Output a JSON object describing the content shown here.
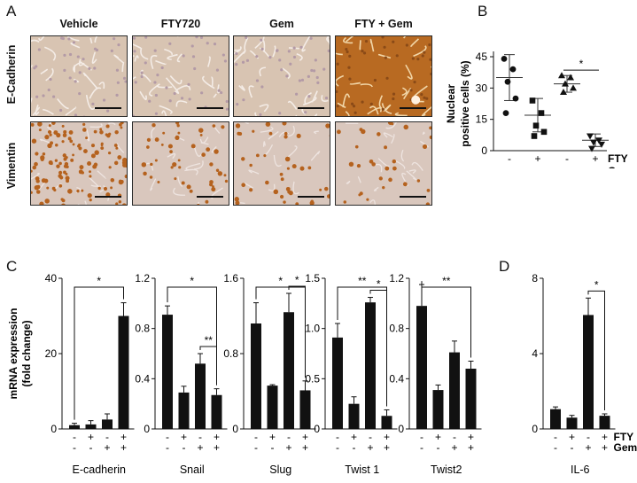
{
  "panel_labels": {
    "a": "A",
    "b": "B",
    "c": "C",
    "d": "D"
  },
  "panel_a": {
    "columns": [
      "Vehicle",
      "FTY720",
      "Gem",
      "FTY + Gem"
    ],
    "rows": [
      "E-Cadherin",
      "Vimentin"
    ],
    "colors": {
      "ecad_light": "#d8c4b2",
      "ecad_strong": "#b86a22",
      "vim_bg": "#d9c7bd",
      "vim_nuclei": "#b5621e"
    }
  },
  "chart_data": [
    {
      "id": "B",
      "type": "scatter",
      "ylabel": "Nuclear\npositive cells (%)",
      "ylim": [
        0,
        45
      ],
      "yticks": [
        "0",
        "15",
        "30",
        "45"
      ],
      "treatment_rows": [
        {
          "name": "FTY",
          "signs": [
            "-",
            "+",
            "-",
            "+"
          ]
        },
        {
          "name": "Gem",
          "signs": [
            "-",
            "-",
            "+",
            "+"
          ]
        }
      ],
      "groups": [
        {
          "marker": "circle",
          "points": [
            44,
            39,
            33,
            25,
            18
          ],
          "mean": 35,
          "sd": 11
        },
        {
          "marker": "square",
          "points": [
            24,
            18,
            12,
            9,
            7
          ],
          "mean": 17,
          "sd": 8
        },
        {
          "marker": "triangle",
          "points": [
            36,
            35,
            32,
            30,
            28
          ],
          "mean": 32,
          "sd": 4
        },
        {
          "marker": "triangle-down",
          "points": [
            7,
            5,
            4,
            3,
            1
          ],
          "mean": 5,
          "sd": 3
        }
      ],
      "significance": [
        {
          "from": 3,
          "to": 4,
          "label": "*"
        }
      ]
    },
    {
      "id": "C",
      "type": "bar",
      "ylabel": "mRNA expression\n(fold change)",
      "treatment_rows": [
        {
          "name": "FTY",
          "signs": [
            "-",
            "+",
            "-",
            "+"
          ]
        },
        {
          "name": "Gem",
          "signs": [
            "-",
            "-",
            "+",
            "+"
          ]
        }
      ],
      "subplots": [
        {
          "xlabel": "E-cadherin",
          "ylim": [
            0,
            40
          ],
          "yticks": [
            "0",
            "20",
            "40"
          ],
          "values": [
            1,
            1.2,
            2.5,
            30
          ],
          "errors": [
            0.5,
            1,
            1.5,
            3.5
          ],
          "significance": [
            {
              "from": 1,
              "to": 4,
              "label": "*"
            }
          ]
        },
        {
          "xlabel": "Snail",
          "ylim": [
            0,
            1.2
          ],
          "yticks": [
            "0",
            "0.4",
            "0.8",
            "1.2"
          ],
          "values": [
            0.91,
            0.29,
            0.52,
            0.27
          ],
          "errors": [
            0.07,
            0.05,
            0.08,
            0.05
          ],
          "significance": [
            {
              "from": 1,
              "to": 4,
              "label": "*"
            },
            {
              "from": 3,
              "to": 4,
              "label": "**"
            }
          ]
        },
        {
          "xlabel": "Slug",
          "ylim": [
            0,
            1.6
          ],
          "yticks": [
            "0",
            "0.8",
            "1.6"
          ],
          "values": [
            1.12,
            0.46,
            1.24,
            0.41
          ],
          "errors": [
            0.22,
            0.01,
            0.2,
            0.1
          ],
          "significance": [
            {
              "from": 1,
              "to": 4,
              "label": "*"
            },
            {
              "from": 3,
              "to": 4,
              "label": "*"
            }
          ]
        },
        {
          "xlabel": "Twist 1",
          "ylim": [
            0,
            1.5
          ],
          "yticks": [
            "0",
            "0.5",
            "1.0",
            "1.5"
          ],
          "values": [
            0.91,
            0.25,
            1.26,
            0.13
          ],
          "errors": [
            0.14,
            0.07,
            0.05,
            0.06
          ],
          "significance": [
            {
              "from": 1,
              "to": 4,
              "label": "**"
            },
            {
              "from": 3,
              "to": 4,
              "label": "*"
            }
          ]
        },
        {
          "xlabel": "Twist2",
          "ylim": [
            0,
            1.2
          ],
          "yticks": [
            "0",
            "0.4",
            "0.8",
            "1.2"
          ],
          "values": [
            0.98,
            0.31,
            0.61,
            0.48
          ],
          "errors": [
            0.17,
            0.04,
            0.09,
            0.06
          ],
          "significance": [
            {
              "from": 1,
              "to": 4,
              "label": "**"
            }
          ]
        }
      ]
    },
    {
      "id": "D",
      "type": "bar",
      "treatment_rows": [
        {
          "name": "FTY",
          "signs": [
            "-",
            "+",
            "-",
            "+"
          ]
        },
        {
          "name": "Gem",
          "signs": [
            "-",
            "-",
            "+",
            "+"
          ]
        }
      ],
      "subplots": [
        {
          "xlabel": "IL-6",
          "ylim": [
            0,
            8
          ],
          "yticks": [
            "0",
            "4",
            "8"
          ],
          "values": [
            1.05,
            0.6,
            6.05,
            0.7
          ],
          "errors": [
            0.12,
            0.12,
            0.9,
            0.1
          ],
          "significance": [
            {
              "from": 3,
              "to": 4,
              "label": "*"
            }
          ]
        }
      ]
    }
  ]
}
